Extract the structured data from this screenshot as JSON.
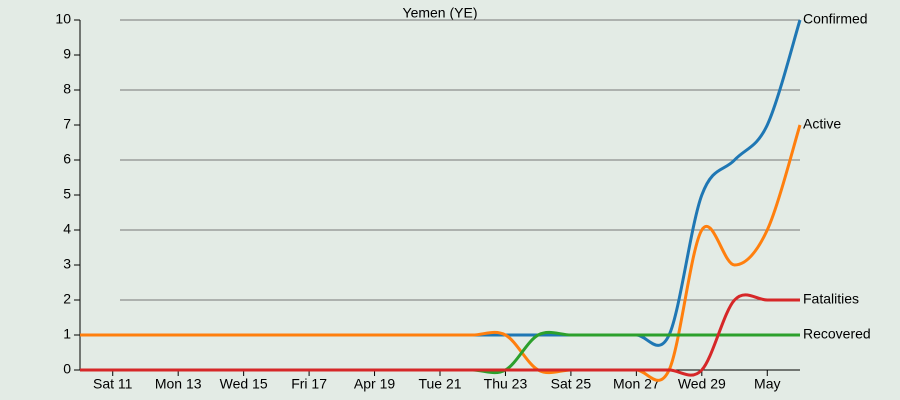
{
  "chart_data": {
    "type": "line",
    "title": "Yemen (YE)",
    "x": [
      "Apr 10",
      "Apr 11",
      "Apr 12",
      "Apr 13",
      "Apr 14",
      "Apr 15",
      "Apr 16",
      "Apr 17",
      "Apr 18",
      "Apr 19",
      "Apr 20",
      "Apr 21",
      "Apr 22",
      "Apr 23",
      "Apr 24",
      "Apr 25",
      "Apr 26",
      "Apr 27",
      "Apr 28",
      "Apr 29",
      "Apr 30",
      "May 1",
      "May 2"
    ],
    "xticks": [
      {
        "value": "Apr 11",
        "label": "Sat 11"
      },
      {
        "value": "Apr 13",
        "label": "Mon 13"
      },
      {
        "value": "Apr 15",
        "label": "Wed 15"
      },
      {
        "value": "Apr 17",
        "label": "Fri 17"
      },
      {
        "value": "Apr 19",
        "label": "Apr 19"
      },
      {
        "value": "Apr 21",
        "label": "Tue 21"
      },
      {
        "value": "Apr 23",
        "label": "Thu 23"
      },
      {
        "value": "Apr 25",
        "label": "Sat 25"
      },
      {
        "value": "Apr 27",
        "label": "Mon 27"
      },
      {
        "value": "Apr 29",
        "label": "Wed 29"
      },
      {
        "value": "May 1",
        "label": "May"
      }
    ],
    "ylim": [
      0,
      10
    ],
    "yticks": [
      0,
      1,
      2,
      3,
      4,
      5,
      6,
      7,
      8,
      9,
      10
    ],
    "grid_lines": [
      2,
      4,
      6,
      8,
      10
    ],
    "series": [
      {
        "name": "Confirmed",
        "color": "#1f77b4",
        "values": [
          1,
          1,
          1,
          1,
          1,
          1,
          1,
          1,
          1,
          1,
          1,
          1,
          1,
          1,
          1,
          1,
          1,
          1,
          1,
          5,
          6,
          7,
          10
        ]
      },
      {
        "name": "Active",
        "color": "#ff7f0e",
        "values": [
          1,
          1,
          1,
          1,
          1,
          1,
          1,
          1,
          1,
          1,
          1,
          1,
          1,
          1,
          0,
          0,
          0,
          0,
          0,
          4,
          3,
          4,
          7
        ]
      },
      {
        "name": "Recovered",
        "color": "#2ca02c",
        "values": [
          0,
          0,
          0,
          0,
          0,
          0,
          0,
          0,
          0,
          0,
          0,
          0,
          0,
          0,
          1,
          1,
          1,
          1,
          1,
          1,
          1,
          1,
          1
        ]
      },
      {
        "name": "Fatalities",
        "color": "#d62728",
        "values": [
          0,
          0,
          0,
          0,
          0,
          0,
          0,
          0,
          0,
          0,
          0,
          0,
          0,
          0,
          0,
          0,
          0,
          0,
          0,
          0,
          2,
          2,
          2
        ]
      }
    ]
  }
}
